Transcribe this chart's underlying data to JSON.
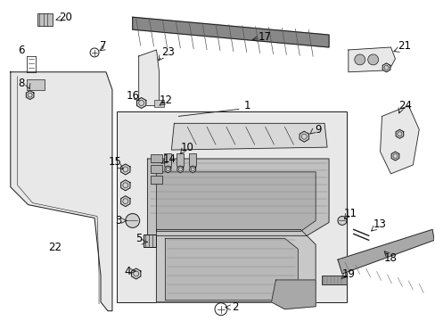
{
  "bg_color": "#ffffff",
  "line_color": "#1a1a1a",
  "fill_light": "#e8e8e8",
  "fill_mid": "#c8c8c8",
  "fill_dark": "#a0a0a0"
}
